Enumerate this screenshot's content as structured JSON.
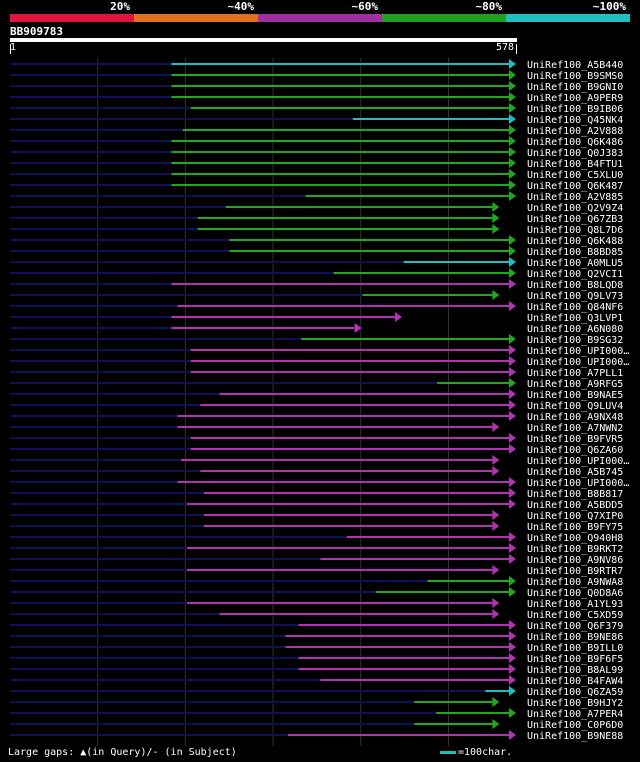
{
  "legend": {
    "segments": [
      {
        "color": "#e0143c",
        "label": "20%"
      },
      {
        "color": "#e07020",
        "label": "~40%"
      },
      {
        "color": "#a030a0",
        "label": "~60%"
      },
      {
        "color": "#20a020",
        "label": "~80%"
      },
      {
        "color": "#20c0c0",
        "label": "~100%"
      }
    ]
  },
  "query": {
    "name": "BB909783",
    "start": "1",
    "end": "578"
  },
  "footer": {
    "gaps_text": "Large gaps: ▲(in Query)/- (in Subject)",
    "scale_text": "=100char."
  },
  "colors": {
    "green": "#22a81e",
    "cyan": "#1bbfc2",
    "purple": "#b033b0",
    "navy": "#10105a",
    "tick": "#ffff80",
    "grid": "#333"
  },
  "chart_data": {
    "type": "alignment-overview",
    "query_length": 578,
    "hits": [
      {
        "name": "UniRef100_A5B440",
        "start": 185,
        "end": 578,
        "color": "cyan",
        "arrow": "right"
      },
      {
        "name": "UniRef100_B9SMS0",
        "start": 185,
        "end": 578,
        "color": "green",
        "arrow": "right"
      },
      {
        "name": "UniRef100_B9GNI0",
        "start": 185,
        "end": 578,
        "color": "green",
        "arrow": "right"
      },
      {
        "name": "UniRef100_A9PER9",
        "start": 185,
        "end": 578,
        "color": "green",
        "arrow": "right"
      },
      {
        "name": "UniRef100_B9IB06",
        "start": 207,
        "end": 578,
        "color": "green",
        "arrow": "right"
      },
      {
        "name": "UniRef100_Q45NK4",
        "start": 392,
        "end": 578,
        "color": "cyan",
        "arrow": "right"
      },
      {
        "name": "UniRef100_A2V888",
        "start": 198,
        "end": 578,
        "color": "green",
        "arrow": "right"
      },
      {
        "name": "UniRef100_Q6K486",
        "start": 185,
        "end": 578,
        "color": "green",
        "arrow": "right"
      },
      {
        "name": "UniRef100_Q0J383",
        "start": 185,
        "end": 578,
        "color": "green",
        "arrow": "right"
      },
      {
        "name": "UniRef100_B4FTU1",
        "start": 185,
        "end": 578,
        "color": "green",
        "arrow": "right"
      },
      {
        "name": "UniRef100_C5XLU0",
        "start": 185,
        "end": 578,
        "color": "green",
        "arrow": "right"
      },
      {
        "name": "UniRef100_Q6K487",
        "start": 185,
        "end": 578,
        "color": "green",
        "arrow": "right"
      },
      {
        "name": "UniRef100_A2V885",
        "start": 338,
        "end": 578,
        "color": "green",
        "arrow": "right"
      },
      {
        "name": "UniRef100_Q2V9Z4",
        "start": 247,
        "end": 559,
        "color": "green",
        "arrow": "right"
      },
      {
        "name": "UniRef100_Q67ZB3",
        "start": 215,
        "end": 559,
        "color": "green",
        "arrow": "right"
      },
      {
        "name": "UniRef100_Q8L7D6",
        "start": 215,
        "end": 559,
        "color": "green",
        "arrow": "right"
      },
      {
        "name": "UniRef100_Q6K488",
        "start": 251,
        "end": 578,
        "color": "green",
        "arrow": "right"
      },
      {
        "name": "UniRef100_B8BD85",
        "start": 251,
        "end": 578,
        "color": "green",
        "arrow": "right"
      },
      {
        "name": "UniRef100_A0MLU5",
        "start": 450,
        "end": 578,
        "color": "cyan",
        "arrow": "right"
      },
      {
        "name": "UniRef100_Q2VCI1",
        "start": 370,
        "end": 578,
        "color": "green",
        "arrow": "right"
      },
      {
        "name": "UniRef100_B8LQD8",
        "start": 185,
        "end": 578,
        "color": "purple",
        "arrow": "right"
      },
      {
        "name": "UniRef100_Q9LV73",
        "start": 403,
        "end": 559,
        "color": "green",
        "arrow": "right"
      },
      {
        "name": "UniRef100_Q84NF6",
        "start": 192,
        "end": 578,
        "color": "purple",
        "arrow": "right"
      },
      {
        "name": "UniRef100_Q3LVP1",
        "start": 185,
        "end": 448,
        "color": "purple",
        "arrow": "right"
      },
      {
        "name": "UniRef100_A6N080",
        "start": 185,
        "end": 402,
        "color": "purple",
        "arrow": "right"
      },
      {
        "name": "UniRef100_B9SG32",
        "start": 333,
        "end": 578,
        "color": "green",
        "arrow": "right"
      },
      {
        "name": "UniRef100_UPI000…",
        "start": 207,
        "end": 578,
        "color": "purple",
        "arrow": "right"
      },
      {
        "name": "UniRef100_UPI000…",
        "start": 207,
        "end": 578,
        "color": "purple",
        "arrow": "right"
      },
      {
        "name": "UniRef100_A7PLL1",
        "start": 207,
        "end": 578,
        "color": "purple",
        "arrow": "right"
      },
      {
        "name": "UniRef100_A9RFG5",
        "start": 488,
        "end": 578,
        "color": "green",
        "arrow": "right"
      },
      {
        "name": "UniRef100_B9NAE5",
        "start": 240,
        "end": 578,
        "color": "purple",
        "arrow": "right"
      },
      {
        "name": "UniRef100_Q9LUV4",
        "start": 218,
        "end": 578,
        "color": "purple",
        "arrow": "right"
      },
      {
        "name": "UniRef100_A9NX48",
        "start": 192,
        "end": 578,
        "color": "purple",
        "arrow": "right"
      },
      {
        "name": "UniRef100_A7NWN2",
        "start": 192,
        "end": 559,
        "color": "purple",
        "arrow": "right"
      },
      {
        "name": "UniRef100_B9FVR5",
        "start": 207,
        "end": 578,
        "color": "purple",
        "arrow": "right"
      },
      {
        "name": "UniRef100_Q6ZA60",
        "start": 207,
        "end": 578,
        "color": "purple",
        "arrow": "right"
      },
      {
        "name": "UniRef100_UPI000…",
        "start": 196,
        "end": 559,
        "color": "purple",
        "arrow": "right"
      },
      {
        "name": "UniRef100_A5B745",
        "start": 218,
        "end": 559,
        "color": "purple",
        "arrow": "right"
      },
      {
        "name": "UniRef100_UPI000…",
        "start": 192,
        "end": 578,
        "color": "purple",
        "arrow": "right"
      },
      {
        "name": "UniRef100_B8B817",
        "start": 222,
        "end": 578,
        "color": "purple",
        "arrow": "right"
      },
      {
        "name": "UniRef100_A5BDD5",
        "start": 203,
        "end": 578,
        "color": "purple",
        "arrow": "right"
      },
      {
        "name": "UniRef100_Q7XIP0",
        "start": 222,
        "end": 559,
        "color": "purple",
        "arrow": "right"
      },
      {
        "name": "UniRef100_B9FY75",
        "start": 222,
        "end": 559,
        "color": "purple",
        "arrow": "right"
      },
      {
        "name": "UniRef100_Q940H8",
        "start": 385,
        "end": 578,
        "color": "purple",
        "arrow": "right"
      },
      {
        "name": "UniRef100_B9RKT2",
        "start": 203,
        "end": 578,
        "color": "purple",
        "arrow": "right"
      },
      {
        "name": "UniRef100_A9NV86",
        "start": 355,
        "end": 578,
        "color": "purple",
        "arrow": "right"
      },
      {
        "name": "UniRef100_B9RTR7",
        "start": 203,
        "end": 559,
        "color": "purple",
        "arrow": "right"
      },
      {
        "name": "UniRef100_A9NWA8",
        "start": 477,
        "end": 578,
        "color": "green",
        "arrow": "right"
      },
      {
        "name": "UniRef100_Q0D8A6",
        "start": 418,
        "end": 578,
        "color": "green",
        "arrow": "right"
      },
      {
        "name": "UniRef100_A1YL93",
        "start": 203,
        "end": 559,
        "color": "purple",
        "arrow": "right"
      },
      {
        "name": "UniRef100_C5XD59",
        "start": 240,
        "end": 559,
        "color": "purple",
        "arrow": "right"
      },
      {
        "name": "UniRef100_Q6F379",
        "start": 330,
        "end": 578,
        "color": "purple",
        "arrow": "right"
      },
      {
        "name": "UniRef100_B9NE86",
        "start": 315,
        "end": 578,
        "color": "purple",
        "arrow": "right"
      },
      {
        "name": "UniRef100_B9ILL0",
        "start": 315,
        "end": 578,
        "color": "purple",
        "arrow": "right"
      },
      {
        "name": "UniRef100_B9F6F5",
        "start": 330,
        "end": 578,
        "color": "purple",
        "arrow": "right"
      },
      {
        "name": "UniRef100_B8AL99",
        "start": 330,
        "end": 578,
        "color": "purple",
        "arrow": "right"
      },
      {
        "name": "UniRef100_B4FAW4",
        "start": 355,
        "end": 578,
        "color": "purple",
        "arrow": "right"
      },
      {
        "name": "UniRef100_Q6ZA59",
        "start": 543,
        "end": 578,
        "color": "cyan",
        "arrow": "right"
      },
      {
        "name": "UniRef100_B9HJY2",
        "start": 462,
        "end": 559,
        "color": "green",
        "arrow": "right"
      },
      {
        "name": "UniRef100_A7PER4",
        "start": 487,
        "end": 578,
        "color": "green",
        "arrow": "right"
      },
      {
        "name": "UniRef100_C0P6D0",
        "start": 462,
        "end": 559,
        "color": "green",
        "arrow": "right"
      },
      {
        "name": "UniRef100_B9NE88",
        "start": 318,
        "end": 578,
        "color": "purple",
        "arrow": "right"
      }
    ]
  }
}
